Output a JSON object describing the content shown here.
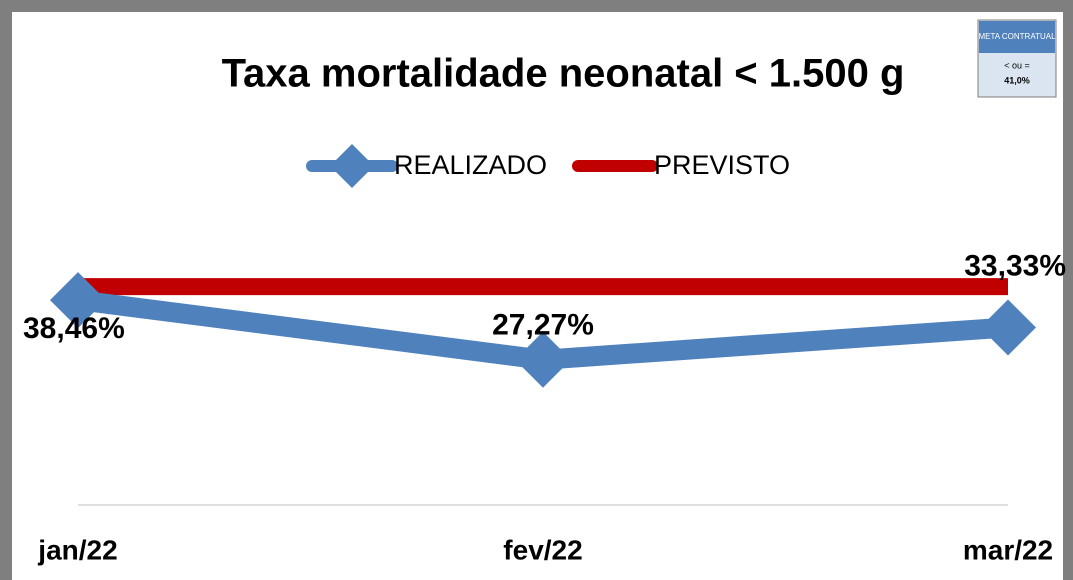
{
  "chart_data": {
    "type": "line",
    "title": "Taxa mortalidade neonatal < 1.500 g",
    "categories": [
      "jan/22",
      "fev/22",
      "mar/22"
    ],
    "series": [
      {
        "name": "REALIZADO",
        "color": "#4f81bd",
        "values": [
          38.46,
          27.27,
          33.33
        ],
        "value_labels": [
          "38,46%",
          "27,27%",
          "33,33%"
        ]
      },
      {
        "name": "PREVISTO",
        "color": "#c00000",
        "values": [
          41,
          41,
          41
        ]
      }
    ],
    "ylim": [
      0,
      55
    ],
    "legend": "top",
    "annotation": {
      "title": "META CONTRATUAL",
      "text": "< ou =",
      "value": "41,0%"
    }
  }
}
